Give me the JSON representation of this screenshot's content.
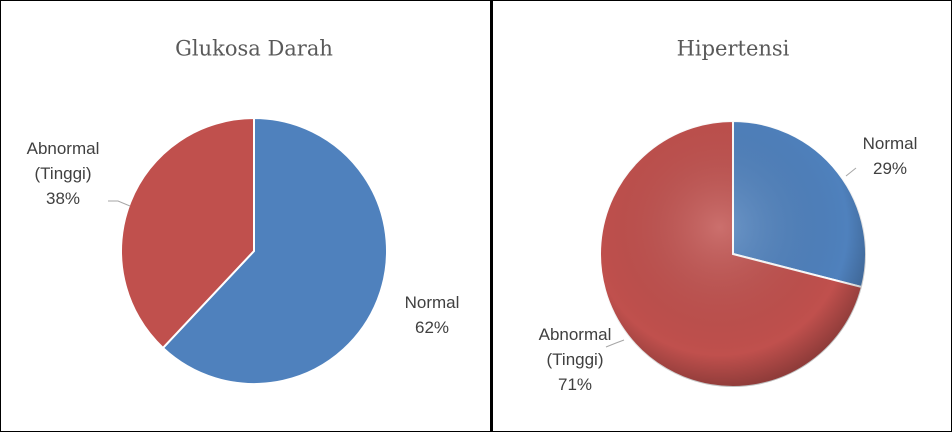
{
  "chart_data": [
    {
      "type": "pie",
      "title": "Glukosa Darah",
      "categories": [
        "Normal",
        "Abnormal (Tinggi)"
      ],
      "values": [
        62,
        38
      ],
      "value_labels": [
        "62%",
        "38%"
      ],
      "colors": [
        "#4f81bd",
        "#c0504d"
      ]
    },
    {
      "type": "pie",
      "title": "Hipertensi",
      "categories": [
        "Normal",
        "Abnormal (Tinggi)"
      ],
      "values": [
        29,
        71
      ],
      "value_labels": [
        "29%",
        "71%"
      ],
      "colors": [
        "#4f81bd",
        "#c0504d"
      ]
    }
  ]
}
